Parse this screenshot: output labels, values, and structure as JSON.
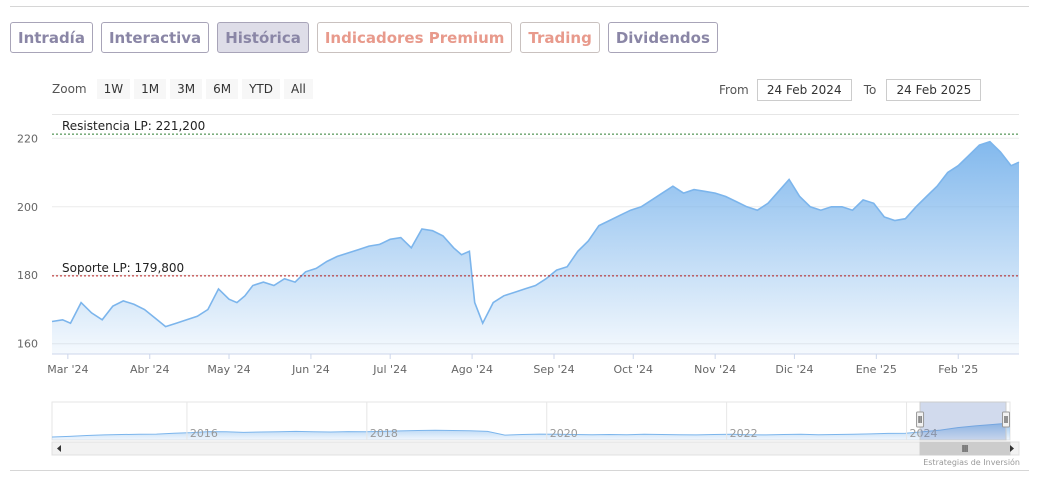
{
  "tabs": [
    {
      "label": "Intradía",
      "active": false,
      "color": "#8a86a6"
    },
    {
      "label": "Interactiva",
      "active": false,
      "color": "#8a86a6"
    },
    {
      "label": "Histórica",
      "active": true,
      "color": "#8a86a6"
    },
    {
      "label": "Indicadores Premium",
      "active": false,
      "color": "#e89a8c"
    },
    {
      "label": "Trading",
      "active": false,
      "color": "#e89a8c"
    },
    {
      "label": "Dividendos",
      "active": false,
      "color": "#8a86a6"
    }
  ],
  "zoom": {
    "label": "Zoom",
    "buttons": [
      "1W",
      "1M",
      "3M",
      "6M",
      "YTD",
      "All"
    ]
  },
  "range": {
    "from_label": "From",
    "from_value": "24 Feb 2024",
    "to_label": "To",
    "to_value": "24 Feb 2025"
  },
  "credits": "Estrategias de Inversión",
  "chart_data": {
    "type": "area",
    "title": "",
    "xlabel": "",
    "ylabel": "",
    "ylim": [
      157,
      223
    ],
    "xlim": [
      "2024-02-24",
      "2025-02-24"
    ],
    "yticks": [
      160,
      180,
      200,
      220
    ],
    "xticks": [
      {
        "label": "Mar '24",
        "date": "2024-03-01"
      },
      {
        "label": "Abr '24",
        "date": "2024-04-01"
      },
      {
        "label": "May '24",
        "date": "2024-05-01"
      },
      {
        "label": "Jun '24",
        "date": "2024-06-01"
      },
      {
        "label": "Jul '24",
        "date": "2024-07-01"
      },
      {
        "label": "Ago '24",
        "date": "2024-08-01"
      },
      {
        "label": "Sep '24",
        "date": "2024-09-01"
      },
      {
        "label": "Oct '24",
        "date": "2024-10-01"
      },
      {
        "label": "Nov '24",
        "date": "2024-11-01"
      },
      {
        "label": "Dic '24",
        "date": "2024-12-01"
      },
      {
        "label": "Ene '25",
        "date": "2025-01-01"
      },
      {
        "label": "Feb '25",
        "date": "2025-02-01"
      }
    ],
    "grid": true,
    "line_color": "#7cb5ec",
    "reference_lines": [
      {
        "label": "Resistencia LP: 221,200",
        "value": 221.2,
        "color": "#2e7d32"
      },
      {
        "label": "Soporte LP: 179,800",
        "value": 179.8,
        "color": "#b71c1c"
      }
    ],
    "series": [
      {
        "x": [
          "2024-02-24",
          "2024-02-28",
          "2024-03-02",
          "2024-03-06",
          "2024-03-10",
          "2024-03-14",
          "2024-03-18",
          "2024-03-22",
          "2024-03-26",
          "2024-03-30",
          "2024-04-03",
          "2024-04-07",
          "2024-04-11",
          "2024-04-15",
          "2024-04-19",
          "2024-04-23",
          "2024-04-27",
          "2024-05-01",
          "2024-05-04",
          "2024-05-07",
          "2024-05-10",
          "2024-05-14",
          "2024-05-18",
          "2024-05-22",
          "2024-05-26",
          "2024-05-30",
          "2024-06-03",
          "2024-06-07",
          "2024-06-11",
          "2024-06-15",
          "2024-06-19",
          "2024-06-23",
          "2024-06-27",
          "2024-07-01",
          "2024-07-05",
          "2024-07-09",
          "2024-07-13",
          "2024-07-17",
          "2024-07-21",
          "2024-07-25",
          "2024-07-28",
          "2024-07-31",
          "2024-08-02",
          "2024-08-05",
          "2024-08-09",
          "2024-08-13",
          "2024-08-17",
          "2024-08-21",
          "2024-08-25",
          "2024-08-29",
          "2024-09-02",
          "2024-09-06",
          "2024-09-10",
          "2024-09-14",
          "2024-09-18",
          "2024-09-22",
          "2024-09-26",
          "2024-09-30",
          "2024-10-04",
          "2024-10-08",
          "2024-10-12",
          "2024-10-16",
          "2024-10-20",
          "2024-10-24",
          "2024-10-28",
          "2024-11-01",
          "2024-11-05",
          "2024-11-09",
          "2024-11-13",
          "2024-11-17",
          "2024-11-21",
          "2024-11-25",
          "2024-11-29",
          "2024-12-03",
          "2024-12-07",
          "2024-12-11",
          "2024-12-15",
          "2024-12-19",
          "2024-12-23",
          "2024-12-27",
          "2024-12-31",
          "2025-01-04",
          "2025-01-08",
          "2025-01-12",
          "2025-01-16",
          "2025-01-20",
          "2025-01-24",
          "2025-01-28",
          "2025-02-01",
          "2025-02-05",
          "2025-02-09",
          "2025-02-13",
          "2025-02-17",
          "2025-02-21",
          "2025-02-24"
        ],
        "values": [
          166.5,
          167,
          166,
          172,
          169,
          167,
          171,
          172.5,
          171.5,
          170,
          167.5,
          165,
          166,
          167,
          168,
          170,
          176,
          173,
          172,
          174,
          177,
          178,
          177,
          179,
          178,
          181,
          182,
          184,
          185.5,
          186.5,
          187.5,
          188.5,
          189,
          190.5,
          191,
          188,
          193.5,
          193,
          191.5,
          188,
          186,
          187,
          172,
          166,
          172,
          174,
          175,
          176,
          177,
          179,
          181.5,
          182.5,
          187,
          190,
          194.5,
          196,
          197.5,
          199,
          200,
          202,
          204,
          206,
          204,
          205,
          204.5,
          204,
          203,
          201.5,
          200,
          199,
          201,
          204.5,
          208,
          203,
          200,
          199,
          200,
          200,
          199,
          202,
          201,
          197,
          196,
          196.5,
          200,
          203,
          206,
          210,
          212,
          215,
          218,
          219,
          216,
          212,
          213
        ]
      }
    ],
    "navigator": {
      "labels": [
        "2016",
        "2018",
        "2020",
        "2022",
        "2024"
      ],
      "label_years": [
        2016,
        2018,
        2020,
        2022,
        2024
      ],
      "x_start": 2014.5,
      "x_end": 2025.15,
      "selected_start": 2024.15,
      "selected_end": 2025.15,
      "values": [
        145,
        148,
        152,
        155,
        157,
        158,
        159,
        163,
        166,
        171,
        170,
        167,
        169,
        170,
        172,
        170,
        169,
        171,
        170,
        172,
        174,
        176,
        177,
        176,
        175,
        172,
        154,
        157,
        159,
        158,
        157,
        156,
        157,
        156,
        158,
        157,
        156,
        155,
        157,
        158,
        156,
        155,
        157,
        158,
        156,
        157,
        158,
        160,
        162,
        163,
        170,
        178,
        190,
        198,
        205,
        212
      ]
    }
  }
}
